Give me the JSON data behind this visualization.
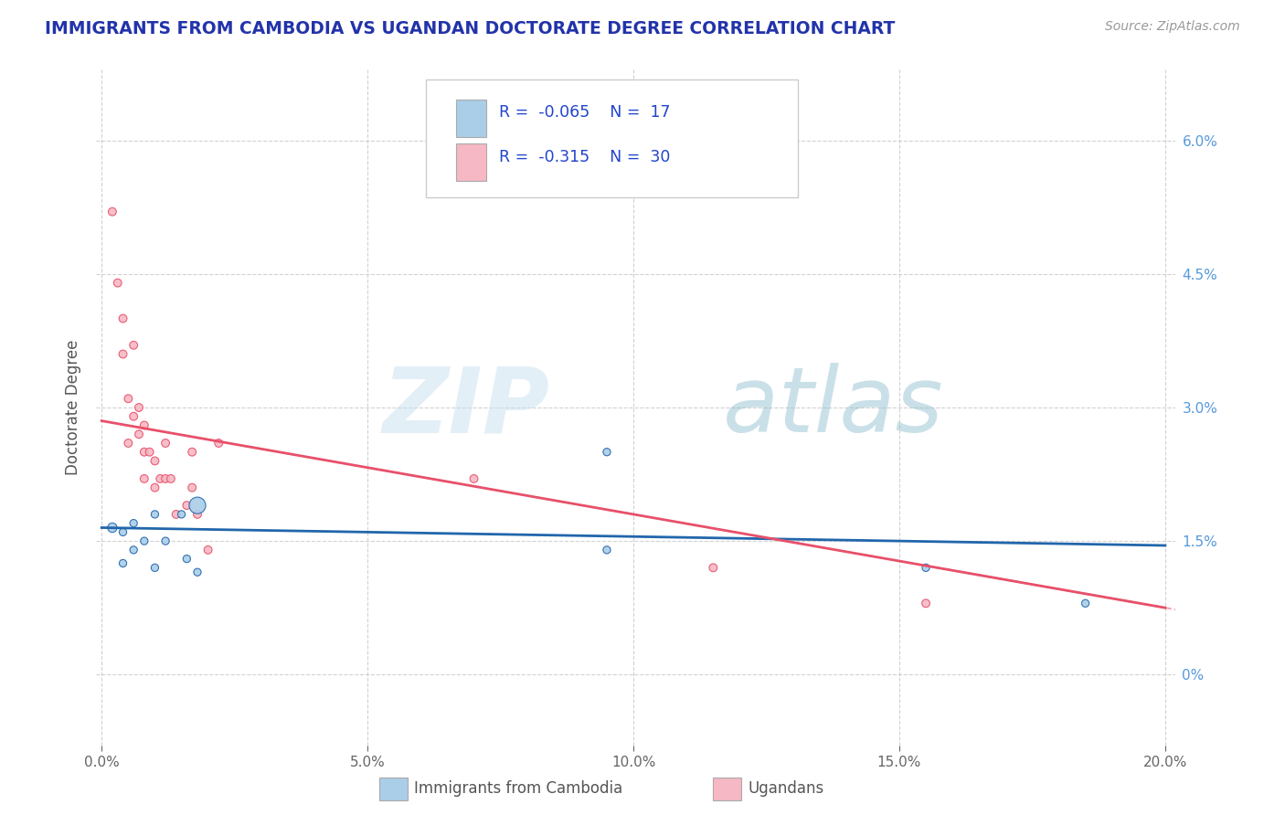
{
  "title": "IMMIGRANTS FROM CAMBODIA VS UGANDAN DOCTORATE DEGREE CORRELATION CHART",
  "source": "Source: ZipAtlas.com",
  "ylabel": "Doctorate Degree",
  "legend_label1": "Immigrants from Cambodia",
  "legend_label2": "Ugandans",
  "R1": -0.065,
  "N1": 17,
  "R2": -0.315,
  "N2": 30,
  "xmin": 0.0,
  "xmax": 0.2,
  "ymin": -0.008,
  "ymax": 0.068,
  "yticks": [
    0.0,
    0.015,
    0.03,
    0.045,
    0.06
  ],
  "ytick_labels": [
    "0%",
    "1.5%",
    "3.0%",
    "4.5%",
    "6.0%"
  ],
  "xticks": [
    0.0,
    0.05,
    0.1,
    0.15,
    0.2
  ],
  "xtick_labels": [
    "0.0%",
    "5.0%",
    "10.0%",
    "15.0%",
    "20.0%"
  ],
  "color_blue": "#aacde8",
  "color_pink": "#f5b8c4",
  "color_blue_line": "#2166ac",
  "color_pink_line": "#e8506a",
  "color_title": "#3333aa",
  "background": "#ffffff",
  "watermark_zip": "ZIP",
  "watermark_atlas": "atlas",
  "blue_line_y0": 0.0165,
  "blue_line_y1": 0.0145,
  "pink_line_y0": 0.0285,
  "pink_line_y1": 0.0075,
  "blue_x": [
    0.002,
    0.004,
    0.004,
    0.006,
    0.006,
    0.008,
    0.01,
    0.01,
    0.012,
    0.015,
    0.016,
    0.018,
    0.018,
    0.095,
    0.095,
    0.155,
    0.185
  ],
  "blue_y": [
    0.0165,
    0.016,
    0.0125,
    0.014,
    0.017,
    0.015,
    0.012,
    0.018,
    0.015,
    0.018,
    0.013,
    0.0115,
    0.019,
    0.025,
    0.014,
    0.012,
    0.008
  ],
  "blue_size": [
    55,
    35,
    35,
    35,
    35,
    35,
    35,
    35,
    35,
    35,
    35,
    35,
    170,
    35,
    35,
    35,
    35
  ],
  "pink_x": [
    0.002,
    0.003,
    0.004,
    0.004,
    0.005,
    0.005,
    0.006,
    0.006,
    0.007,
    0.007,
    0.008,
    0.008,
    0.008,
    0.009,
    0.01,
    0.01,
    0.011,
    0.012,
    0.012,
    0.013,
    0.014,
    0.016,
    0.017,
    0.017,
    0.018,
    0.02,
    0.022,
    0.07,
    0.115,
    0.155
  ],
  "pink_y": [
    0.052,
    0.044,
    0.036,
    0.04,
    0.031,
    0.026,
    0.037,
    0.029,
    0.03,
    0.027,
    0.025,
    0.028,
    0.022,
    0.025,
    0.024,
    0.021,
    0.022,
    0.022,
    0.026,
    0.022,
    0.018,
    0.019,
    0.025,
    0.021,
    0.018,
    0.014,
    0.026,
    0.022,
    0.012,
    0.008
  ],
  "pink_size": [
    40,
    40,
    40,
    40,
    40,
    40,
    40,
    40,
    40,
    40,
    40,
    40,
    40,
    40,
    40,
    40,
    40,
    40,
    40,
    40,
    40,
    40,
    40,
    40,
    40,
    40,
    40,
    40,
    40,
    40
  ]
}
